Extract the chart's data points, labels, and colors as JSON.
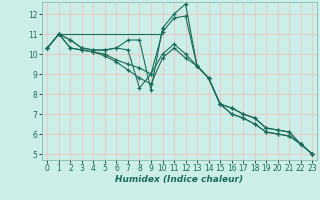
{
  "xlabel": "Humidex (Indice chaleur)",
  "bg_color": "#cceee8",
  "grid_color": "#e8c8c8",
  "line_color": "#1a6b5a",
  "xlim": [
    -0.5,
    23.4
  ],
  "ylim": [
    4.7,
    12.6
  ],
  "xticks": [
    0,
    1,
    2,
    3,
    4,
    5,
    6,
    7,
    8,
    9,
    10,
    11,
    12,
    13,
    14,
    15,
    16,
    17,
    18,
    19,
    20,
    21,
    22,
    23
  ],
  "yticks": [
    5,
    6,
    7,
    8,
    9,
    10,
    11,
    12
  ],
  "line1_x": [
    0,
    1,
    2,
    3,
    4,
    5,
    6,
    7,
    8,
    9,
    10,
    11,
    12,
    13,
    14,
    15,
    16,
    17,
    18,
    19,
    20,
    21,
    22,
    23
  ],
  "line1_y": [
    10.3,
    11.0,
    10.7,
    10.3,
    10.2,
    10.2,
    10.3,
    10.7,
    10.7,
    8.2,
    11.3,
    12.0,
    12.5,
    9.4,
    8.8,
    7.5,
    7.3,
    7.0,
    6.8,
    6.3,
    6.2,
    6.1,
    5.5,
    5.0
  ],
  "line2_x": [
    0,
    1,
    2,
    3,
    4,
    5,
    6,
    7,
    8,
    9,
    10,
    11,
    12,
    13,
    14,
    15,
    16,
    17,
    18,
    19,
    20,
    21,
    22,
    23
  ],
  "line2_y": [
    10.3,
    11.0,
    10.7,
    10.3,
    10.2,
    10.2,
    10.3,
    10.2,
    8.3,
    9.0,
    11.1,
    11.8,
    11.9,
    9.4,
    8.8,
    7.5,
    7.3,
    7.0,
    6.8,
    6.3,
    6.2,
    6.1,
    5.5,
    5.0
  ],
  "line3_x": [
    0,
    1,
    2,
    3,
    4,
    5,
    6,
    7,
    8,
    9,
    10,
    11,
    12,
    13,
    14,
    15,
    16,
    17,
    18,
    19,
    20,
    21,
    22,
    23
  ],
  "line3_y": [
    10.3,
    11.0,
    10.3,
    10.2,
    10.1,
    10.0,
    9.7,
    9.5,
    9.3,
    9.0,
    10.0,
    10.5,
    10.0,
    9.4,
    8.8,
    7.5,
    7.0,
    6.8,
    6.5,
    6.1,
    6.0,
    5.9,
    5.5,
    5.0
  ],
  "line4_x": [
    0,
    1,
    2,
    3,
    4,
    5,
    6,
    7,
    8,
    9,
    10,
    11,
    12,
    13,
    14,
    15,
    16,
    17,
    18,
    19,
    20,
    21,
    22,
    23
  ],
  "line4_y": [
    10.3,
    11.0,
    10.3,
    10.2,
    10.1,
    9.9,
    9.6,
    9.2,
    8.8,
    8.5,
    9.8,
    10.3,
    9.8,
    9.4,
    8.8,
    7.5,
    7.0,
    6.8,
    6.5,
    6.1,
    6.0,
    5.9,
    5.5,
    5.0
  ],
  "hline_y": 11.0,
  "hline_x_start": 1.0,
  "hline_x_end": 10.0
}
